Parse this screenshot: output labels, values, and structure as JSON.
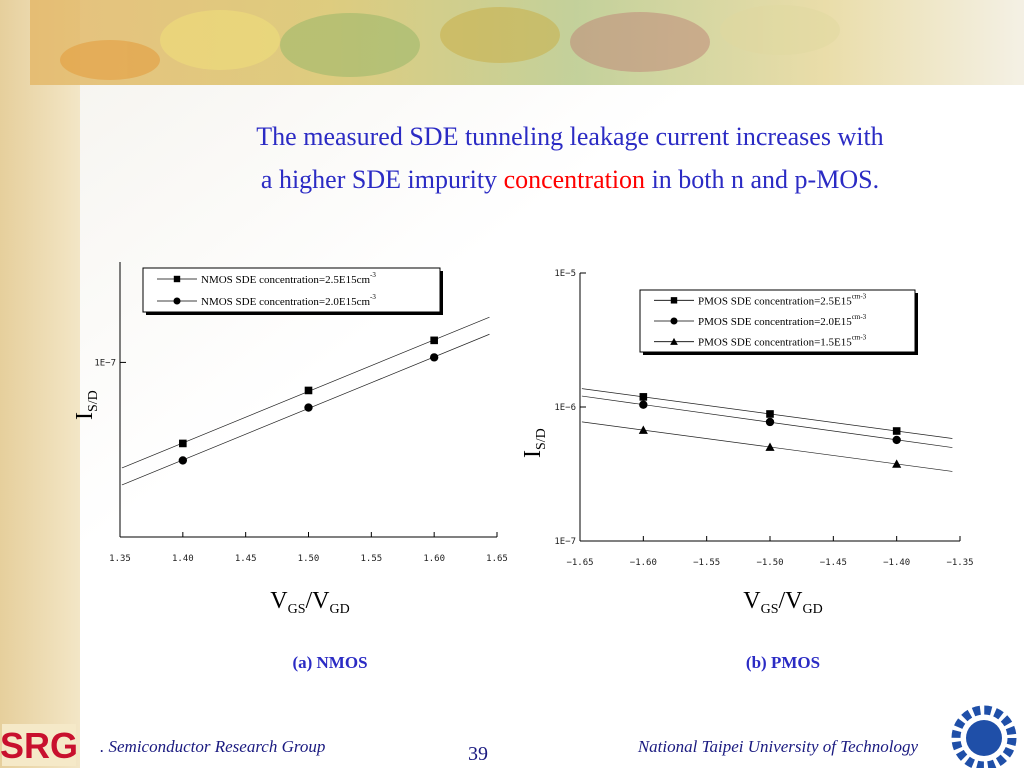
{
  "slide": {
    "title_line1": "The measured SDE tunneling leakage current  increases with",
    "title_line2": [
      "a higher SDE impurity ",
      "concentration",
      " in both n and p-MOS."
    ],
    "logo_text": "SRG",
    "footer_left": ". Semiconductor Research Group",
    "page_number": "39",
    "footer_right": "National Taipei University of Technology"
  },
  "chart_data": [
    {
      "type": "scatter",
      "caption": "(a) NMOS",
      "ylabel": [
        "I",
        "S/D"
      ],
      "xlabel": [
        "V",
        "GS",
        "/V",
        "GD"
      ],
      "log_y": true,
      "fit_lines": true,
      "x": [
        1.4,
        1.5,
        1.6
      ],
      "xlim": [
        1.35,
        1.65
      ],
      "xticks": [
        1.35,
        {
          "value": 1.4,
          "label": "1.40"
        },
        1.45,
        {
          "value": 1.5,
          "label": "1.50"
        },
        1.55,
        {
          "value": 1.6,
          "label": "1.60"
        },
        1.65
      ],
      "ylim": [
        5e-09,
        5.6e-07
      ],
      "yticks": [
        {
          "value": 1e-07,
          "label": "1E−7"
        }
      ],
      "series": [
        {
          "name": "NMOS SDE concentration=2.5E15cm",
          "unit": "-3",
          "marker": "square",
          "color": "#000000",
          "values": [
            2.49e-08,
            6.18e-08,
            1.46e-07
          ]
        },
        {
          "name": "NMOS SDE concentration=2.0E15cm",
          "unit": "-3",
          "marker": "circle",
          "color": "#000000",
          "values": [
            1.86e-08,
            4.61e-08,
            1.09e-07
          ]
        }
      ]
    },
    {
      "type": "scatter",
      "caption": "(b) PMOS",
      "ylabel": [
        "I",
        "S/D"
      ],
      "xlabel": [
        "V",
        "GS",
        "/V",
        "GD"
      ],
      "log_y": true,
      "fit_lines": true,
      "x": [
        -1.6,
        -1.5,
        -1.4
      ],
      "xlim": [
        -1.65,
        -1.35
      ],
      "xticks": [
        {
          "value": -1.65,
          "label": "−1.65"
        },
        {
          "value": -1.6,
          "label": "−1.60"
        },
        {
          "value": -1.55,
          "label": "−1.55"
        },
        {
          "value": -1.5,
          "label": "−1.50"
        },
        {
          "value": -1.45,
          "label": "−1.45"
        },
        {
          "value": -1.4,
          "label": "−1.40"
        },
        {
          "value": -1.35,
          "label": "−1.35"
        }
      ],
      "ylim": [
        1e-07,
        1e-05
      ],
      "yticks": [
        {
          "value": 1e-05,
          "label": "1E−5"
        },
        {
          "value": 1e-06,
          "label": "1E−6"
        },
        {
          "value": 1e-07,
          "label": "1E−7"
        }
      ],
      "series": [
        {
          "name": "PMOS SDE concentration=2.5E15",
          "unit": "cm-3",
          "marker": "square",
          "color": "#000000",
          "values": [
            1.19e-06,
            8.87e-07,
            6.62e-07
          ]
        },
        {
          "name": "PMOS SDE concentration=2.0E15",
          "unit": "cm-3",
          "marker": "circle",
          "color": "#000000",
          "values": [
            1.04e-06,
            7.73e-07,
            5.68e-07
          ]
        },
        {
          "name": "PMOS SDE concentration=1.5E15",
          "unit": "cm-3",
          "marker": "triangle",
          "color": "#000000",
          "values": [
            6.73e-07,
            5.02e-07,
            3.76e-07
          ]
        }
      ]
    }
  ]
}
